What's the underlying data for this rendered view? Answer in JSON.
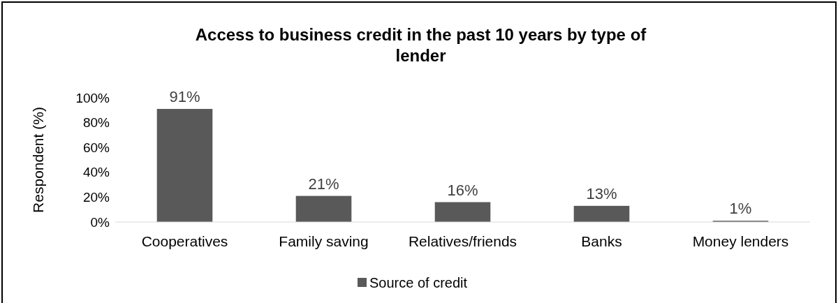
{
  "chart_data": {
    "type": "bar",
    "title": "Access to business credit in the past 10 years by type of lender",
    "ylabel": "Respondent (%)",
    "categories": [
      "Cooperatives",
      "Family saving",
      "Relatives/friends",
      "Banks",
      "Money lenders"
    ],
    "series": [
      {
        "name": "Source of credit",
        "color": "#595959",
        "values": [
          91,
          21,
          16,
          13,
          1
        ],
        "value_labels": [
          "91%",
          "21%",
          "16%",
          "13%",
          "1%"
        ]
      }
    ],
    "ylim": [
      0,
      100
    ],
    "yticks": [
      {
        "value": 0,
        "label": "0%"
      },
      {
        "value": 20,
        "label": "20%"
      },
      {
        "value": 40,
        "label": "40%"
      },
      {
        "value": 60,
        "label": "60%"
      },
      {
        "value": 80,
        "label": "80%"
      },
      {
        "value": 100,
        "label": "100%"
      }
    ],
    "grid": false,
    "legend": "bottom"
  }
}
